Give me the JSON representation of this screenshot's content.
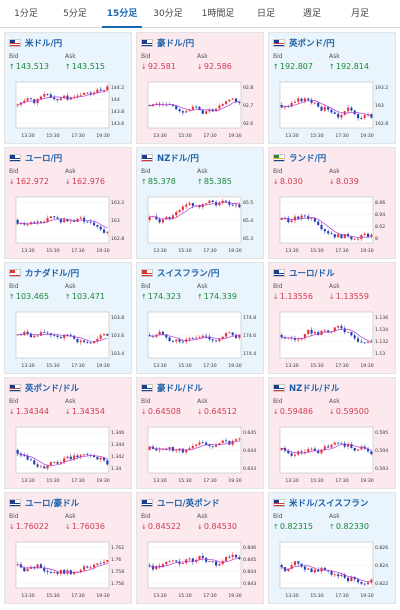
{
  "tabs": [
    {
      "label": "1分足"
    },
    {
      "label": "5分足"
    },
    {
      "label": "15分足",
      "active": true
    },
    {
      "label": "30分足"
    },
    {
      "label": "1時間足"
    },
    {
      "label": "日足"
    },
    {
      "label": "週足"
    },
    {
      "label": "月足"
    }
  ],
  "labels": {
    "bid": "Bid",
    "ask": "Ask"
  },
  "colors": {
    "up_text": "#1a8a3a",
    "down_text": "#d23a52",
    "candle_up": "#e8323c",
    "candle_down": "#1f3fb8",
    "ma_line": "#b040d0",
    "card_up_bg": "#e9f4fc",
    "card_down_bg": "#fce9ee"
  },
  "pairs": [
    {
      "name": "米ドル/円",
      "flag": "us-flag-icon",
      "dir": "up",
      "bid": "143.513",
      "ask": "143.515",
      "arrow": "↑",
      "chart": {
        "y_ticks": [
          "144.2",
          "144",
          "143.8",
          "143.6"
        ],
        "x_ticks": [
          "13:30",
          "15:30",
          "17:30",
          "19:30"
        ]
      }
    },
    {
      "name": "豪ドル/円",
      "flag": "au-flag-icon",
      "dir": "down",
      "bid": "92.581",
      "ask": "92.586",
      "arrow": "↓",
      "chart": {
        "y_ticks": [
          "92.8",
          "92.7",
          "92.6"
        ],
        "x_ticks": [
          "13:30",
          "15:30",
          "17:30",
          "19:30"
        ]
      }
    },
    {
      "name": "英ポンド/円",
      "flag": "gb-flag-icon",
      "dir": "up",
      "bid": "192.807",
      "ask": "192.814",
      "arrow": "↑",
      "chart": {
        "y_ticks": [
          "193.2",
          "193",
          "192.8"
        ],
        "x_ticks": [
          "13:30",
          "15:30",
          "17:30",
          "19:30"
        ]
      }
    },
    {
      "name": "ユーロ/円",
      "flag": "eu-flag-icon",
      "dir": "down",
      "bid": "162.972",
      "ask": "162.976",
      "arrow": "↓",
      "chart": {
        "y_ticks": [
          "163.2",
          "163",
          "162.8"
        ],
        "x_ticks": [
          "13:30",
          "15:30",
          "17:30",
          "19:30"
        ]
      }
    },
    {
      "name": "NZドル/円",
      "flag": "nz-flag-icon",
      "dir": "up",
      "bid": "85.378",
      "ask": "85.385",
      "arrow": "↑",
      "chart": {
        "y_ticks": [
          "85.5",
          "85.4",
          "85.3"
        ],
        "x_ticks": [
          "13:30",
          "15:30",
          "17:30",
          "19:30"
        ]
      }
    },
    {
      "name": "ランド/円",
      "flag": "za-flag-icon",
      "dir": "down",
      "bid": "8.030",
      "ask": "8.039",
      "arrow": "↓",
      "chart": {
        "y_ticks": [
          "8.06",
          "8.04",
          "8.02",
          "8"
        ],
        "x_ticks": [
          "13:30",
          "15:30",
          "17:30",
          "19:30"
        ]
      }
    },
    {
      "name": "カナダドル/円",
      "flag": "ca-flag-icon",
      "dir": "up",
      "bid": "103.465",
      "ask": "103.471",
      "arrow": "↑",
      "chart": {
        "y_ticks": [
          "103.8",
          "103.6",
          "103.4"
        ],
        "x_ticks": [
          "13:30",
          "15:30",
          "17:30",
          "19:30"
        ]
      }
    },
    {
      "name": "スイスフラン/円",
      "flag": "ch-flag-icon",
      "dir": "up",
      "bid": "174.323",
      "ask": "174.339",
      "arrow": "↑",
      "chart": {
        "y_ticks": [
          "174.8",
          "174.6",
          "174.4"
        ],
        "x_ticks": [
          "13:30",
          "15:30",
          "17:30",
          "19:30"
        ]
      }
    },
    {
      "name": "ユーロ/ドル",
      "flag": "eu-flag-icon",
      "dir": "down",
      "bid": "1.13556",
      "ask": "1.13559",
      "arrow": "↓",
      "chart": {
        "y_ticks": [
          "1.136",
          "1.134",
          "1.132",
          "1.13"
        ],
        "x_ticks": [
          "13:30",
          "15:30",
          "17:30",
          "19:30"
        ]
      }
    },
    {
      "name": "英ポンド/ドル",
      "flag": "gb-flag-icon",
      "dir": "down",
      "bid": "1.34344",
      "ask": "1.34354",
      "arrow": "↓",
      "chart": {
        "y_ticks": [
          "1.346",
          "1.344",
          "1.342",
          "1.34"
        ],
        "x_ticks": [
          "13:30",
          "15:30",
          "17:30",
          "19:30"
        ]
      }
    },
    {
      "name": "豪ドル/ドル",
      "flag": "au-flag-icon",
      "dir": "down",
      "bid": "0.64508",
      "ask": "0.64512",
      "arrow": "↓",
      "chart": {
        "y_ticks": [
          "0.645",
          "0.644",
          "0.643"
        ],
        "x_ticks": [
          "13:30",
          "15:30",
          "17:30",
          "19:30"
        ]
      }
    },
    {
      "name": "NZドル/ドル",
      "flag": "nz-flag-icon",
      "dir": "down",
      "bid": "0.59486",
      "ask": "0.59500",
      "arrow": "↓",
      "chart": {
        "y_ticks": [
          "0.595",
          "0.594",
          "0.593"
        ],
        "x_ticks": [
          "13:30",
          "15:30",
          "17:30",
          "19:30"
        ]
      }
    },
    {
      "name": "ユーロ/豪ドル",
      "flag": "eu-flag-icon",
      "dir": "down",
      "bid": "1.76022",
      "ask": "1.76036",
      "arrow": "↓",
      "chart": {
        "y_ticks": [
          "1.762",
          "1.76",
          "1.758",
          "1.756"
        ],
        "x_ticks": [
          "13:30",
          "15:30",
          "17:30",
          "19:30"
        ]
      }
    },
    {
      "name": "ユーロ/英ポンド",
      "flag": "eu-flag-icon",
      "dir": "down",
      "bid": "0.84522",
      "ask": "0.84530",
      "arrow": "↓",
      "chart": {
        "y_ticks": [
          "0.846",
          "0.845",
          "0.844",
          "0.843"
        ],
        "x_ticks": [
          "13:30",
          "15:30",
          "17:30",
          "19:30"
        ]
      }
    },
    {
      "name": "米ドル/スイスフラン",
      "flag": "us-flag-icon",
      "dir": "up",
      "bid": "0.82315",
      "ask": "0.82330",
      "arrow": "↑",
      "chart": {
        "y_ticks": [
          "0.826",
          "0.824",
          "0.822"
        ],
        "x_ticks": [
          "13:30",
          "15:30",
          "17:30",
          "19:30"
        ]
      }
    }
  ]
}
